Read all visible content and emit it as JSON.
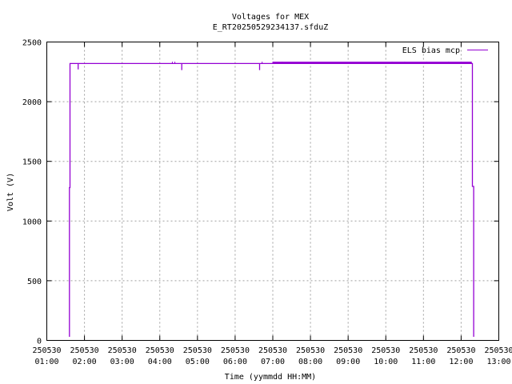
{
  "chart_data": {
    "type": "line",
    "title": "Voltages for MEX",
    "subtitle": "E_RT20250529234137.sfduZ",
    "xlabel": "Time (yymmdd HH:MM)",
    "ylabel": "Volt (V)",
    "xlim": [
      "250530 01:00",
      "250530 13:00"
    ],
    "ylim": [
      0,
      2500
    ],
    "grid": true,
    "legend_position": "top-right",
    "x_ticks": [
      {
        "date": "250530",
        "time": "01:00"
      },
      {
        "date": "250530",
        "time": "02:00"
      },
      {
        "date": "250530",
        "time": "03:00"
      },
      {
        "date": "250530",
        "time": "04:00"
      },
      {
        "date": "250530",
        "time": "05:00"
      },
      {
        "date": "250530",
        "time": "06:00"
      },
      {
        "date": "250530",
        "time": "07:00"
      },
      {
        "date": "250530",
        "time": "08:00"
      },
      {
        "date": "250530",
        "time": "09:00"
      },
      {
        "date": "250530",
        "time": "10:00"
      },
      {
        "date": "250530",
        "time": "11:00"
      },
      {
        "date": "250530",
        "time": "12:00"
      },
      {
        "date": "250530",
        "time": "13:00"
      }
    ],
    "y_ticks": [
      "0",
      "500",
      "1000",
      "1500",
      "2000",
      "2500"
    ],
    "series": [
      {
        "name": "ELS bias mcp",
        "color": "#9400d3",
        "points": [
          [
            "250530 01:36",
            30
          ],
          [
            "250530 01:36",
            1280
          ],
          [
            "250530 01:37",
            1280
          ],
          [
            "250530 01:37",
            2320
          ],
          [
            "250530 01:50",
            2320
          ],
          [
            "250530 01:50",
            2270
          ],
          [
            "250530 01:50",
            2320
          ],
          [
            "250530 04:35",
            2320
          ],
          [
            "250530 04:35",
            2265
          ],
          [
            "250530 04:35",
            2320
          ],
          [
            "250530 06:39",
            2320
          ],
          [
            "250530 06:39",
            2265
          ],
          [
            "250530 06:39",
            2320
          ],
          [
            "250530 12:18",
            2320
          ],
          [
            "250530 12:18",
            1290
          ],
          [
            "250530 12:20",
            1290
          ],
          [
            "250530 12:20",
            30
          ]
        ],
        "spikes": [
          {
            "time": "250530 04:20",
            "value": 2335
          },
          {
            "time": "250530 04:24",
            "value": 2335
          },
          {
            "time": "250530 06:43",
            "value": 2335
          },
          {
            "time": "250530 07:00",
            "value": 2335
          },
          {
            "time": "250530 07:15",
            "value": 2335
          },
          {
            "time": "250530 10:10",
            "value": 2335
          },
          {
            "time": "250530 10:30",
            "value": 2335
          },
          {
            "time": "250530 11:05",
            "value": 2335
          },
          {
            "time": "250530 11:40",
            "value": 2335
          },
          {
            "time": "250530 12:00",
            "value": 2335
          }
        ],
        "dense_spike_band": {
          "start": "250530 07:00",
          "end": "250530 12:17",
          "value": 2335
        }
      }
    ]
  }
}
